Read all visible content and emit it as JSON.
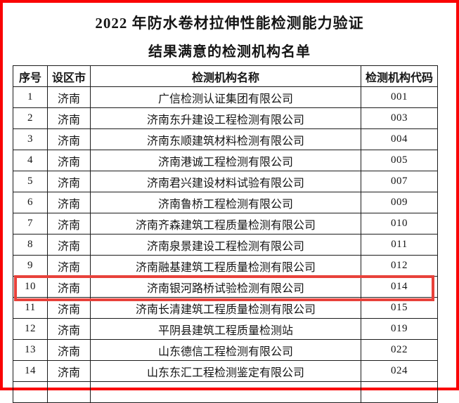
{
  "page": {
    "title": "2022 年防水卷材拉伸性能检测能力验证",
    "subtitle": "结果满意的检测机构名单",
    "page_border_color": "#fa0204",
    "highlight_border_color": "#e8423b",
    "text_color": "#151515",
    "table_border_color": "#1b1b1b"
  },
  "table": {
    "headers": [
      "序号",
      "设区市",
      "检测机构名称",
      "检测机构代码"
    ],
    "rows": [
      {
        "no": "1",
        "city": "济南",
        "name": "广信检测认证集团有限公司",
        "code": "001",
        "highlighted": false
      },
      {
        "no": "2",
        "city": "济南",
        "name": "济南东升建设工程检测有限公司",
        "code": "003",
        "highlighted": false
      },
      {
        "no": "3",
        "city": "济南",
        "name": "济南东顺建筑材料检测有限公司",
        "code": "004",
        "highlighted": false
      },
      {
        "no": "4",
        "city": "济南",
        "name": "济南港诚工程检测有限公司",
        "code": "005",
        "highlighted": false
      },
      {
        "no": "5",
        "city": "济南",
        "name": "济南君兴建设材料试验有限公司",
        "code": "007",
        "highlighted": false
      },
      {
        "no": "6",
        "city": "济南",
        "name": "济南鲁桥工程检测有限公司",
        "code": "009",
        "highlighted": false
      },
      {
        "no": "7",
        "city": "济南",
        "name": "济南齐森建筑工程质量检测有限公司",
        "code": "010",
        "highlighted": false
      },
      {
        "no": "8",
        "city": "济南",
        "name": "济南泉景建设工程检测有限公司",
        "code": "011",
        "highlighted": false
      },
      {
        "no": "9",
        "city": "济南",
        "name": "济南融基建筑工程质量检测有限公司",
        "code": "012",
        "highlighted": false
      },
      {
        "no": "10",
        "city": "济南",
        "name": "济南银河路桥试验检测有限公司",
        "code": "014",
        "highlighted": true
      },
      {
        "no": "11",
        "city": "济南",
        "name": "济南长清建筑工程质量检测有限公司",
        "code": "015",
        "highlighted": false
      },
      {
        "no": "12",
        "city": "济南",
        "name": "平阴县建筑工程质量检测站",
        "code": "019",
        "highlighted": false
      },
      {
        "no": "13",
        "city": "济南",
        "name": "山东德信工程检测有限公司",
        "code": "022",
        "highlighted": false
      },
      {
        "no": "14",
        "city": "济南",
        "name": "山东东汇工程检测鉴定有限公司",
        "code": "024",
        "highlighted": false
      }
    ]
  }
}
